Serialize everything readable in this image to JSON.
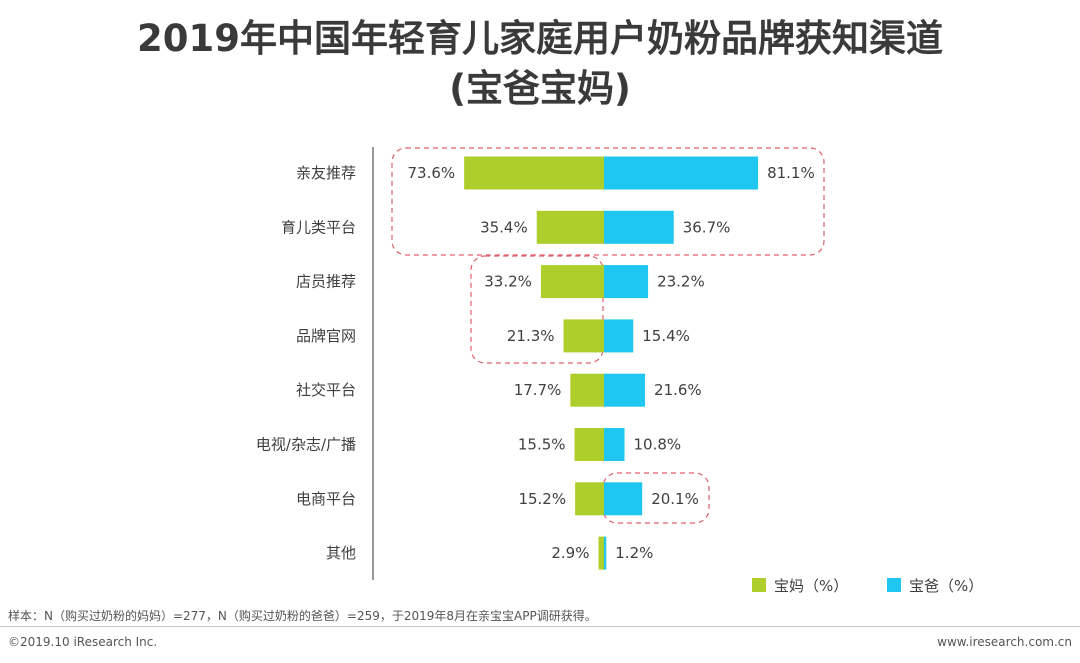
{
  "title_line1": "2019年中国年轻育儿家庭用户奶粉品牌获知渠道",
  "title_line2": "(宝爸宝妈)",
  "colors": {
    "mom": "#aecf2b",
    "dad": "#1fc6ef",
    "highlight": "#e0606c"
  },
  "chart_data": {
    "type": "bar",
    "orientation": "horizontal-butterfly",
    "title": "2019年中国年轻育儿家庭用户奶粉品牌获知渠道(宝爸宝妈)",
    "unit": "%",
    "categories": [
      "亲友推荐",
      "育儿类平台",
      "店员推荐",
      "品牌官网",
      "社交平台",
      "电视/杂志/广播",
      "电商平台",
      "其他"
    ],
    "series": [
      {
        "name": "宝妈（%）",
        "side": "left",
        "values": [
          73.6,
          35.4,
          33.2,
          21.3,
          17.7,
          15.5,
          15.2,
          2.9
        ]
      },
      {
        "name": "宝爸（%）",
        "side": "right",
        "values": [
          81.1,
          36.7,
          23.2,
          15.4,
          21.6,
          10.8,
          20.1,
          1.2
        ]
      }
    ],
    "legend_position": "bottom-right"
  },
  "footer": {
    "note": "样本：N（购买过奶粉的妈妈）=277，N（购买过奶粉的爸爸）=259，于2019年8月在亲宝宝APP调研获得。",
    "copyright": "©2019.10 iResearch Inc.",
    "website": "www.iresearch.com.cn"
  }
}
